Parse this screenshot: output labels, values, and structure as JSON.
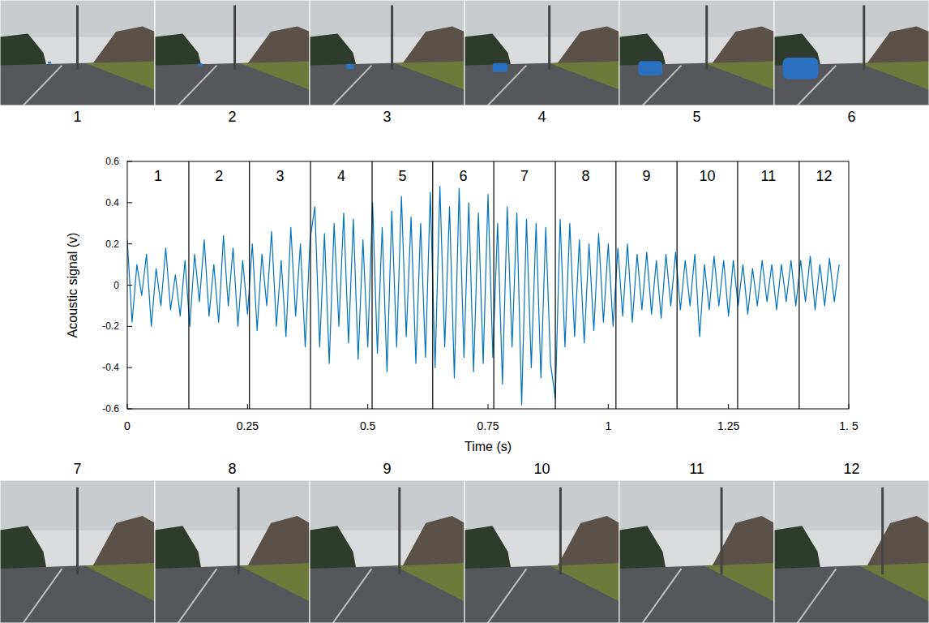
{
  "chart_data": {
    "type": "line",
    "x_label": "Time (s)",
    "y_label": "Acoustic signal (v)",
    "xlim": [
      0,
      1.5
    ],
    "ylim": [
      -0.6,
      0.6
    ],
    "xticks": [
      0,
      0.25,
      0.5,
      0.75,
      1,
      1.25,
      {
        "value": 1.5,
        "label": "1. 5"
      }
    ],
    "yticks": [
      -0.6,
      -0.4,
      -0.2,
      0,
      0.2,
      0.4,
      0.6
    ],
    "grid": false,
    "segment_labels": [
      "1",
      "2",
      "3",
      "4",
      "5",
      "6",
      "7",
      "8",
      "9",
      "10",
      "11",
      "12"
    ],
    "segment_bounds": [
      0.128,
      0.254,
      0.381,
      0.509,
      0.635,
      0.762,
      0.89,
      1.016,
      1.143,
      1.269,
      1.397
    ],
    "x": [
      0,
      0.01,
      0.02,
      0.03,
      0.04,
      0.05,
      0.06,
      0.07,
      0.08,
      0.09,
      0.1,
      0.11,
      0.12,
      0.13,
      0.14,
      0.15,
      0.16,
      0.17,
      0.18,
      0.19,
      0.2,
      0.21,
      0.22,
      0.23,
      0.24,
      0.25,
      0.26,
      0.27,
      0.28,
      0.29,
      0.3,
      0.31,
      0.32,
      0.33,
      0.34,
      0.35,
      0.36,
      0.37,
      0.38,
      0.39,
      0.4,
      0.41,
      0.42,
      0.43,
      0.44,
      0.45,
      0.46,
      0.47,
      0.48,
      0.49,
      0.5,
      0.51,
      0.52,
      0.53,
      0.54,
      0.55,
      0.56,
      0.57,
      0.58,
      0.59,
      0.6,
      0.61,
      0.62,
      0.63,
      0.64,
      0.65,
      0.66,
      0.67,
      0.68,
      0.69,
      0.7,
      0.71,
      0.72,
      0.73,
      0.74,
      0.75,
      0.76,
      0.77,
      0.78,
      0.79,
      0.8,
      0.81,
      0.82,
      0.83,
      0.84,
      0.85,
      0.86,
      0.87,
      0.88,
      0.89,
      0.9,
      0.91,
      0.92,
      0.93,
      0.94,
      0.95,
      0.96,
      0.97,
      0.98,
      0.99,
      1,
      1.01,
      1.02,
      1.03,
      1.04,
      1.05,
      1.06,
      1.07,
      1.08,
      1.09,
      1.1,
      1.11,
      1.12,
      1.13,
      1.14,
      1.15,
      1.16,
      1.17,
      1.18,
      1.19,
      1.2,
      1.21,
      1.22,
      1.23,
      1.24,
      1.25,
      1.26,
      1.27,
      1.28,
      1.29,
      1.3,
      1.31,
      1.32,
      1.33,
      1.34,
      1.35,
      1.36,
      1.37,
      1.38,
      1.39,
      1.4,
      1.41,
      1.42,
      1.43,
      1.44,
      1.45,
      1.46,
      1.47,
      1.48
    ],
    "series": [
      {
        "color": "#0072bd",
        "values": [
          0.22,
          -0.18,
          0.1,
          -0.05,
          0.15,
          -0.2,
          0.08,
          -0.1,
          0.18,
          -0.12,
          0.05,
          -0.15,
          0.12,
          -0.2,
          0.15,
          -0.08,
          0.22,
          -0.15,
          0.1,
          -0.18,
          0.24,
          -0.1,
          0.18,
          -0.2,
          0.12,
          -0.14,
          0.2,
          -0.22,
          0.15,
          -0.1,
          0.26,
          -0.2,
          0.12,
          -0.25,
          0.28,
          -0.15,
          0.2,
          -0.3,
          0.22,
          0.38,
          -0.3,
          0.25,
          -0.38,
          0.3,
          -0.2,
          0.35,
          -0.28,
          0.32,
          -0.36,
          0.22,
          -0.3,
          0.4,
          -0.33,
          0.28,
          -0.42,
          0.36,
          -0.3,
          0.43,
          -0.25,
          0.33,
          -0.38,
          0.3,
          -0.35,
          0.45,
          -0.4,
          0.48,
          -0.3,
          0.38,
          -0.45,
          0.47,
          -0.35,
          0.4,
          -0.42,
          0.35,
          -0.38,
          0.44,
          -0.35,
          0.3,
          -0.48,
          0.38,
          -0.3,
          0.35,
          -0.58,
          0.32,
          -0.4,
          0.3,
          -0.45,
          0.28,
          -0.38,
          -0.55,
          0.32,
          -0.3,
          0.3,
          -0.25,
          0.22,
          -0.28,
          0.2,
          -0.22,
          0.25,
          -0.18,
          0.2,
          -0.2,
          0.18,
          -0.15,
          0.2,
          -0.18,
          0.15,
          -0.12,
          0.16,
          -0.14,
          0.12,
          -0.16,
          0.15,
          -0.1,
          0.16,
          -0.12,
          0.12,
          -0.1,
          0.15,
          -0.25,
          0.1,
          -0.12,
          0.14,
          -0.1,
          0.12,
          -0.15,
          0.12,
          -0.1,
          0.1,
          -0.14,
          0.08,
          -0.1,
          0.12,
          -0.08,
          0.1,
          -0.12,
          0.1,
          -0.08,
          0.12,
          -0.1,
          0.12,
          -0.08,
          0.14,
          -0.12,
          0.1,
          -0.1,
          0.13,
          -0.08,
          0.1
        ]
      }
    ]
  },
  "frames": {
    "top": [
      "1",
      "2",
      "3",
      "4",
      "5",
      "6"
    ],
    "bottom": [
      "7",
      "8",
      "9",
      "10",
      "11",
      "12"
    ]
  }
}
